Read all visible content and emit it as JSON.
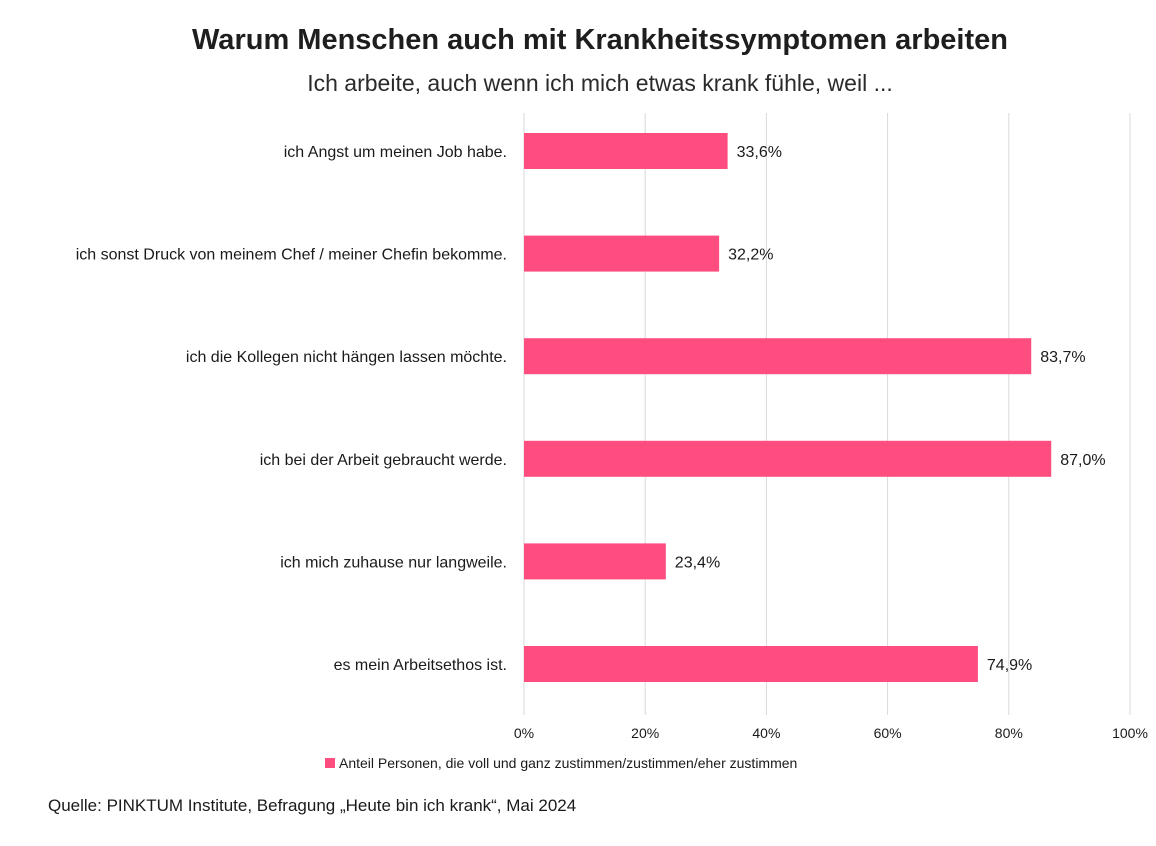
{
  "chart_data": {
    "type": "bar",
    "orientation": "horizontal",
    "title": "Warum Menschen auch mit Krankheitssymptomen arbeiten",
    "subtitle": "Ich arbeite, auch wenn ich mich etwas krank fühle, weil ...",
    "categories": [
      "ich Angst um meinen Job habe.",
      "ich sonst Druck von meinem Chef / meiner Chefin bekomme.",
      "ich die Kollegen nicht hängen lassen möchte.",
      "ich bei der Arbeit gebraucht werde.",
      "ich mich zuhause nur langweile.",
      "es mein Arbeitsethos ist."
    ],
    "series": [
      {
        "name": "Anteil Personen, die voll und ganz zustimmen/zustimmen/eher zustimmen",
        "values": [
          33.6,
          32.2,
          83.7,
          87.0,
          23.4,
          74.9
        ],
        "labels": [
          "33,6%",
          "32,2%",
          "83,7%",
          "87,0%",
          "23,4%",
          "74,9%"
        ],
        "color": "#ff4d80"
      }
    ],
    "xlim": [
      0,
      100
    ],
    "xticks": [
      0,
      20,
      40,
      60,
      80,
      100
    ],
    "xtick_labels": [
      "0%",
      "20%",
      "40%",
      "60%",
      "80%",
      "100%"
    ],
    "grid": true,
    "legend_position": "bottom",
    "source": "Quelle: PINKTUM Institute, Befragung „Heute bin ich krank“, Mai 2024"
  }
}
